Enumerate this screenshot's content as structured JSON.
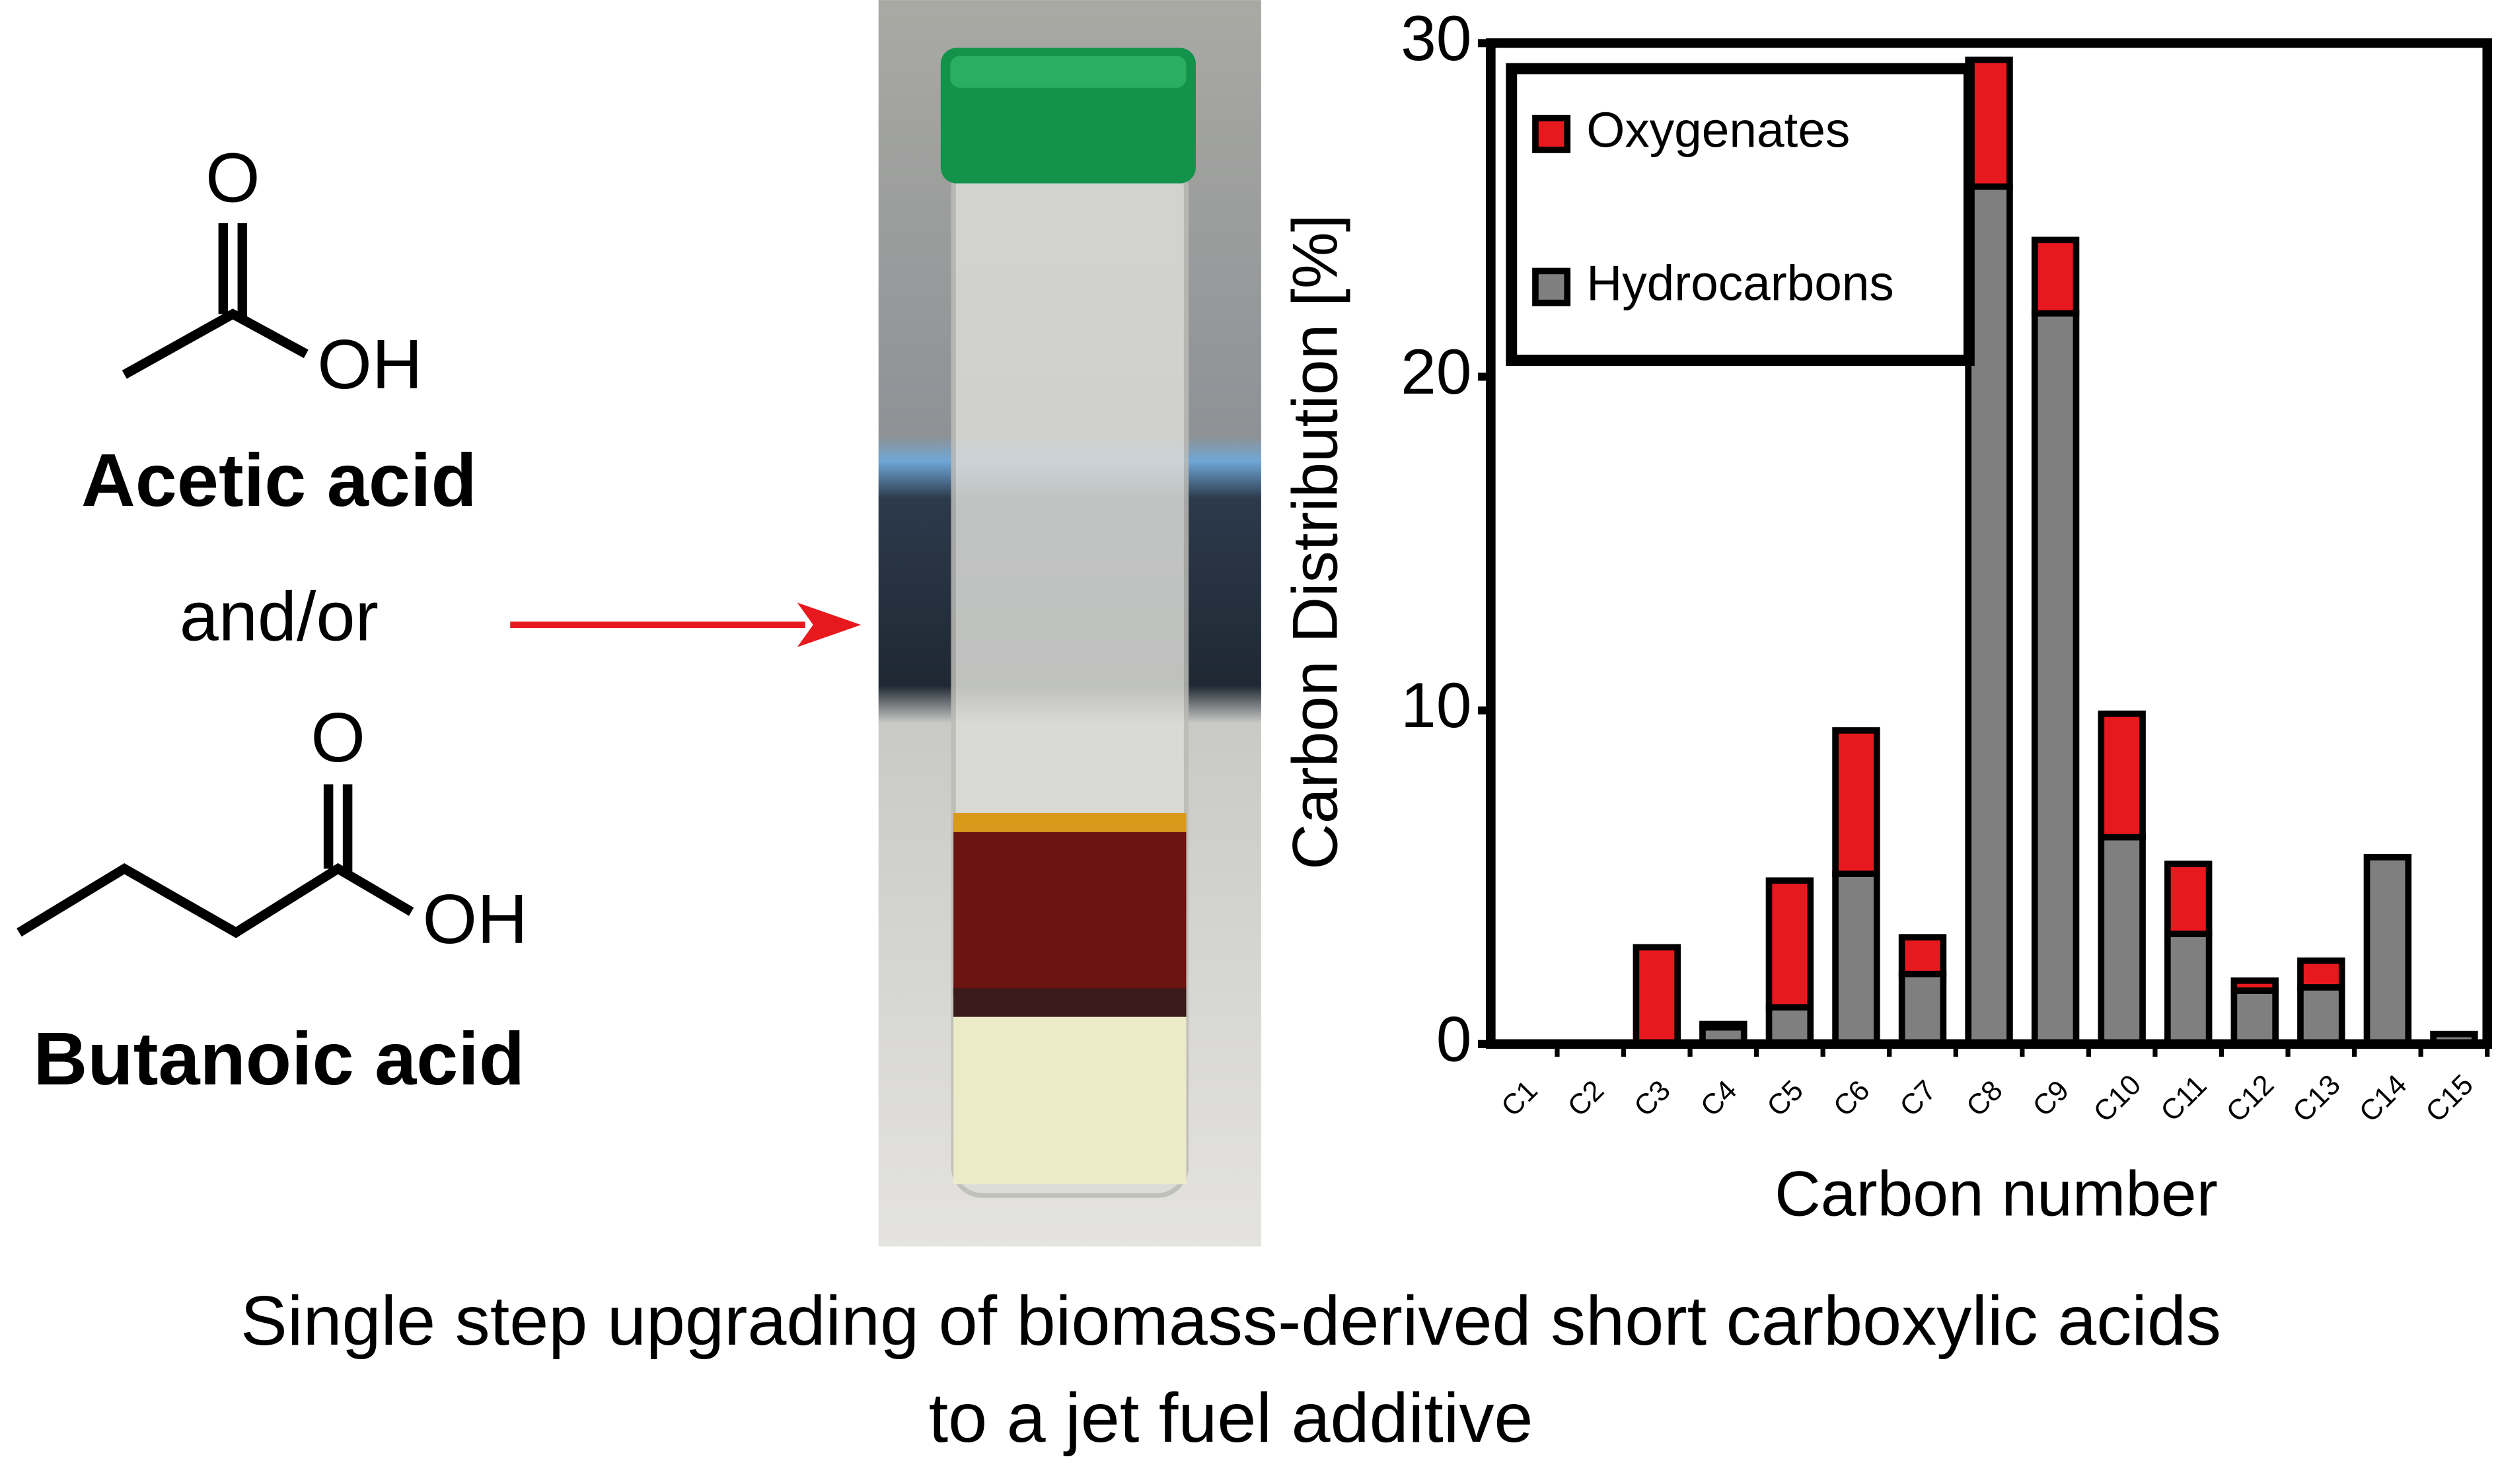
{
  "molecules": [
    {
      "name": "Acetic acid",
      "atoms": [
        "O",
        "OH"
      ]
    },
    {
      "name": "Butanoic acid",
      "atoms": [
        "O",
        "OH"
      ]
    }
  ],
  "connector": "and/or",
  "caption": [
    "Single step upgrading of biomass-derived short carboxylic acids",
    "to a jet fuel additive"
  ],
  "chart_data": {
    "type": "stacked-bar",
    "x_label": "Carbon number",
    "y_label": "Carbon Distribution [%]",
    "categories": [
      "C1",
      "C2",
      "C3",
      "C4",
      "C5",
      "C6",
      "C7",
      "C8",
      "C9",
      "C10",
      "C11",
      "C12",
      "C13",
      "C14",
      "C15"
    ],
    "series": [
      {
        "name": "Hydrocarbons",
        "color": "#7f7f7f",
        "values": [
          0,
          0,
          0,
          0.5,
          1.1,
          5.1,
          2.1,
          25.7,
          21.9,
          6.2,
          3.3,
          1.6,
          1.7,
          5.6,
          0.3
        ]
      },
      {
        "name": "Oxygenates",
        "color": "#e8191e",
        "values": [
          0,
          0,
          2.9,
          0.1,
          3.8,
          4.3,
          1.1,
          3.8,
          2.2,
          3.7,
          2.1,
          0.3,
          0.8,
          0,
          0
        ]
      }
    ],
    "ylim": [
      0,
      30
    ],
    "yticks": [
      0,
      10,
      20,
      30
    ],
    "legend": "top-left"
  }
}
